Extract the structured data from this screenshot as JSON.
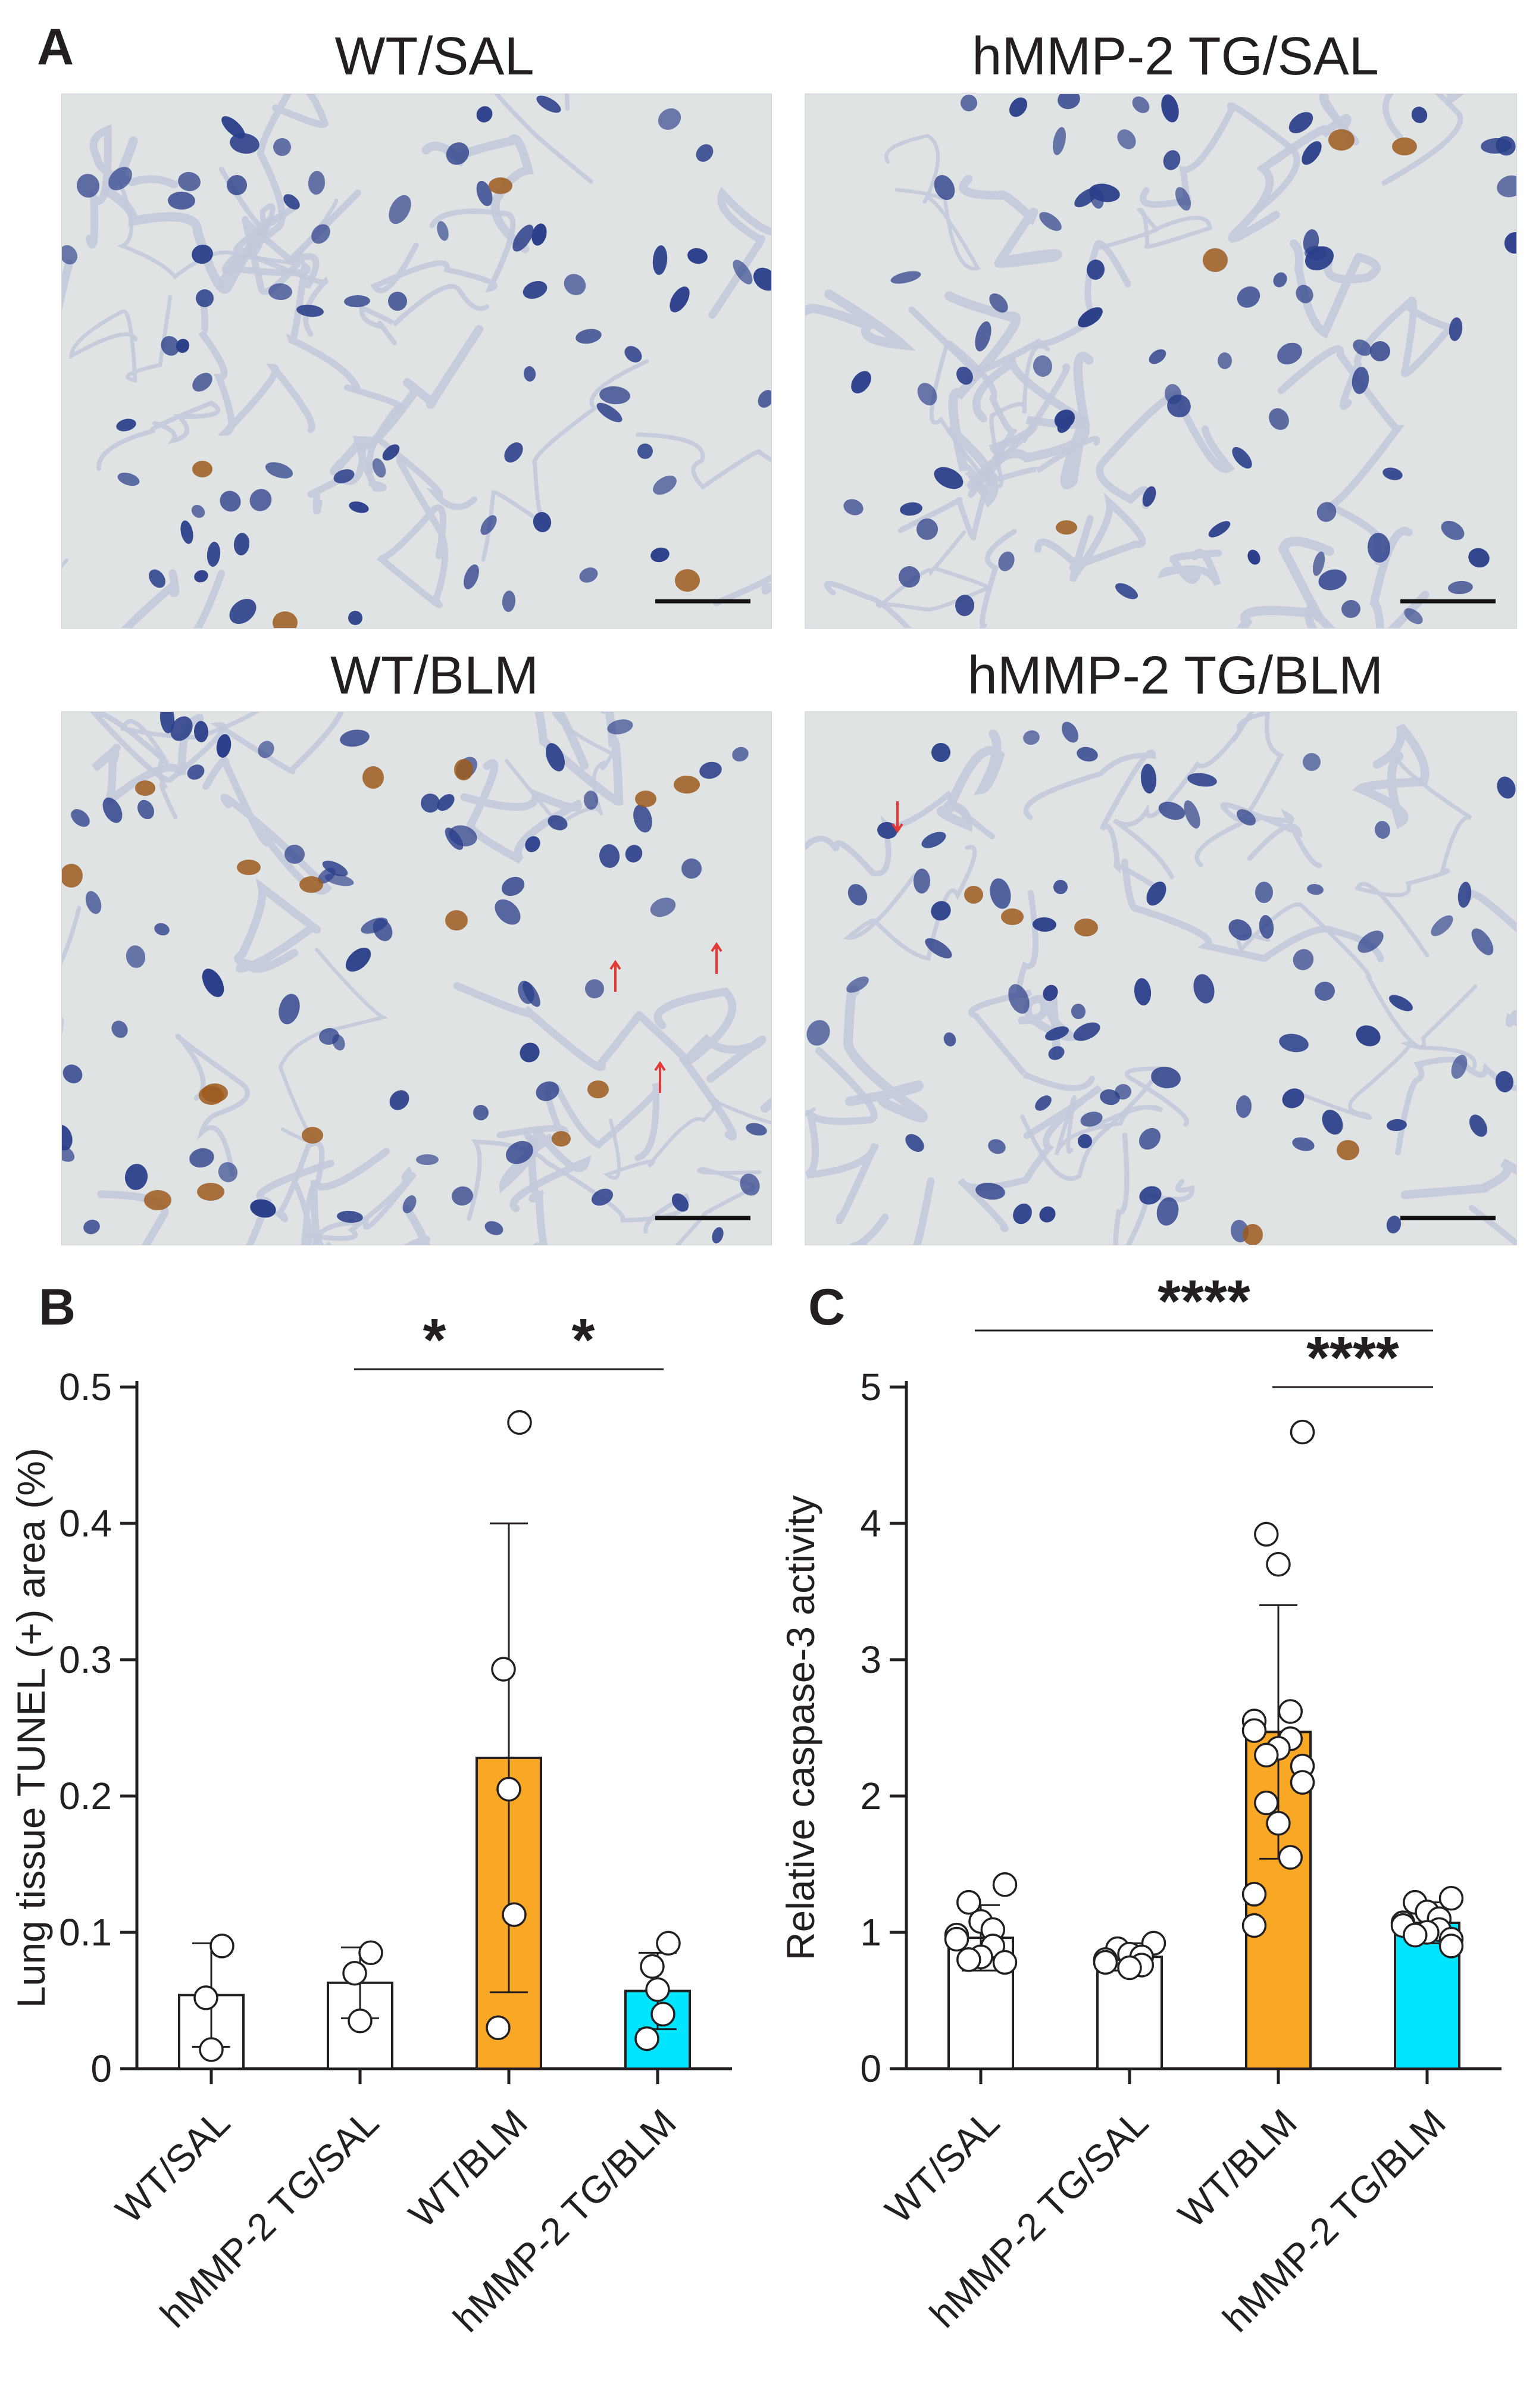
{
  "panel_a": {
    "letter": "A",
    "images": [
      {
        "title": "WT/SAL"
      },
      {
        "title": "hMMP-2 TG/SAL"
      },
      {
        "title": "WT/BLM"
      },
      {
        "title": "hMMP-2 TG/BLM"
      }
    ]
  },
  "colors": {
    "wt_sal": "#ffffff",
    "tg_sal": "#ffffff",
    "wt_blm": "#f9a825",
    "tg_blm": "#00e5ff",
    "tissue_background": "#dfe3e3",
    "nucleus": "#2b3f8a",
    "tunel_positive": "#9c5a1e",
    "arrow": "#e53935"
  },
  "chart_data": [
    {
      "panel": "B",
      "type": "bar",
      "categories": [
        "WT/SAL",
        "hMMP-2 TG/SAL",
        "WT/BLM",
        "hMMP-2 TG/BLM"
      ],
      "ylabel": "Lung tissue TUNEL (+) area (%)",
      "ylim": [
        0,
        0.5
      ],
      "yticks": [
        0,
        0.1,
        0.2,
        0.3,
        0.4,
        0.5
      ],
      "ytick_labels": [
        "0",
        "0.1",
        "0.2",
        "0.3",
        "0.4",
        "0.5"
      ],
      "means": [
        0.054,
        0.063,
        0.228,
        0.057
      ],
      "error_high": [
        0.092,
        0.089,
        0.4,
        0.085
      ],
      "error_low": [
        0.016,
        0.037,
        0.056,
        0.029
      ],
      "points": [
        [
          0.09,
          0.052,
          0.014
        ],
        [
          0.085,
          0.07,
          0.035
        ],
        [
          0.474,
          0.293,
          0.205,
          0.113,
          0.03
        ],
        [
          0.092,
          0.075,
          0.058,
          0.04,
          0.022
        ]
      ],
      "significance": [
        {
          "from": 1,
          "to": 2,
          "label": "*"
        },
        {
          "from": 2,
          "to": 3,
          "label": "*"
        }
      ],
      "grid": false
    },
    {
      "panel": "C",
      "type": "bar",
      "categories": [
        "WT/SAL",
        "hMMP-2 TG/SAL",
        "WT/BLM",
        "hMMP-2 TG/BLM"
      ],
      "ylabel": "Relative caspase-3 activity",
      "ylim": [
        0,
        5
      ],
      "yticks": [
        0,
        1,
        2,
        3,
        4,
        5
      ],
      "ytick_labels": [
        "0",
        "1",
        "2",
        "3",
        "4",
        "5"
      ],
      "means": [
        0.96,
        0.82,
        2.47,
        1.07
      ],
      "error_high": [
        1.2,
        0.92,
        3.4,
        1.22
      ],
      "error_low": [
        0.72,
        0.72,
        1.54,
        0.92
      ],
      "points": [
        [
          1.35,
          1.22,
          1.08,
          1.02,
          0.98,
          0.95,
          0.9,
          0.82,
          0.8,
          0.78
        ],
        [
          0.92,
          0.88,
          0.84,
          0.82,
          0.8,
          0.78,
          0.76,
          0.74
        ],
        [
          4.67,
          3.92,
          3.7,
          2.62,
          2.55,
          2.48,
          2.42,
          2.35,
          2.3,
          2.22,
          2.1,
          1.95,
          1.8,
          1.55,
          1.28,
          1.05
        ],
        [
          1.25,
          1.22,
          1.15,
          1.1,
          1.07,
          1.05,
          1.02,
          1.0,
          0.98,
          0.95,
          0.9
        ]
      ],
      "significance": [
        {
          "from": 0,
          "to": 3,
          "label": "****"
        },
        {
          "from": 2,
          "to": 3,
          "label": "****"
        }
      ],
      "grid": false
    }
  ]
}
